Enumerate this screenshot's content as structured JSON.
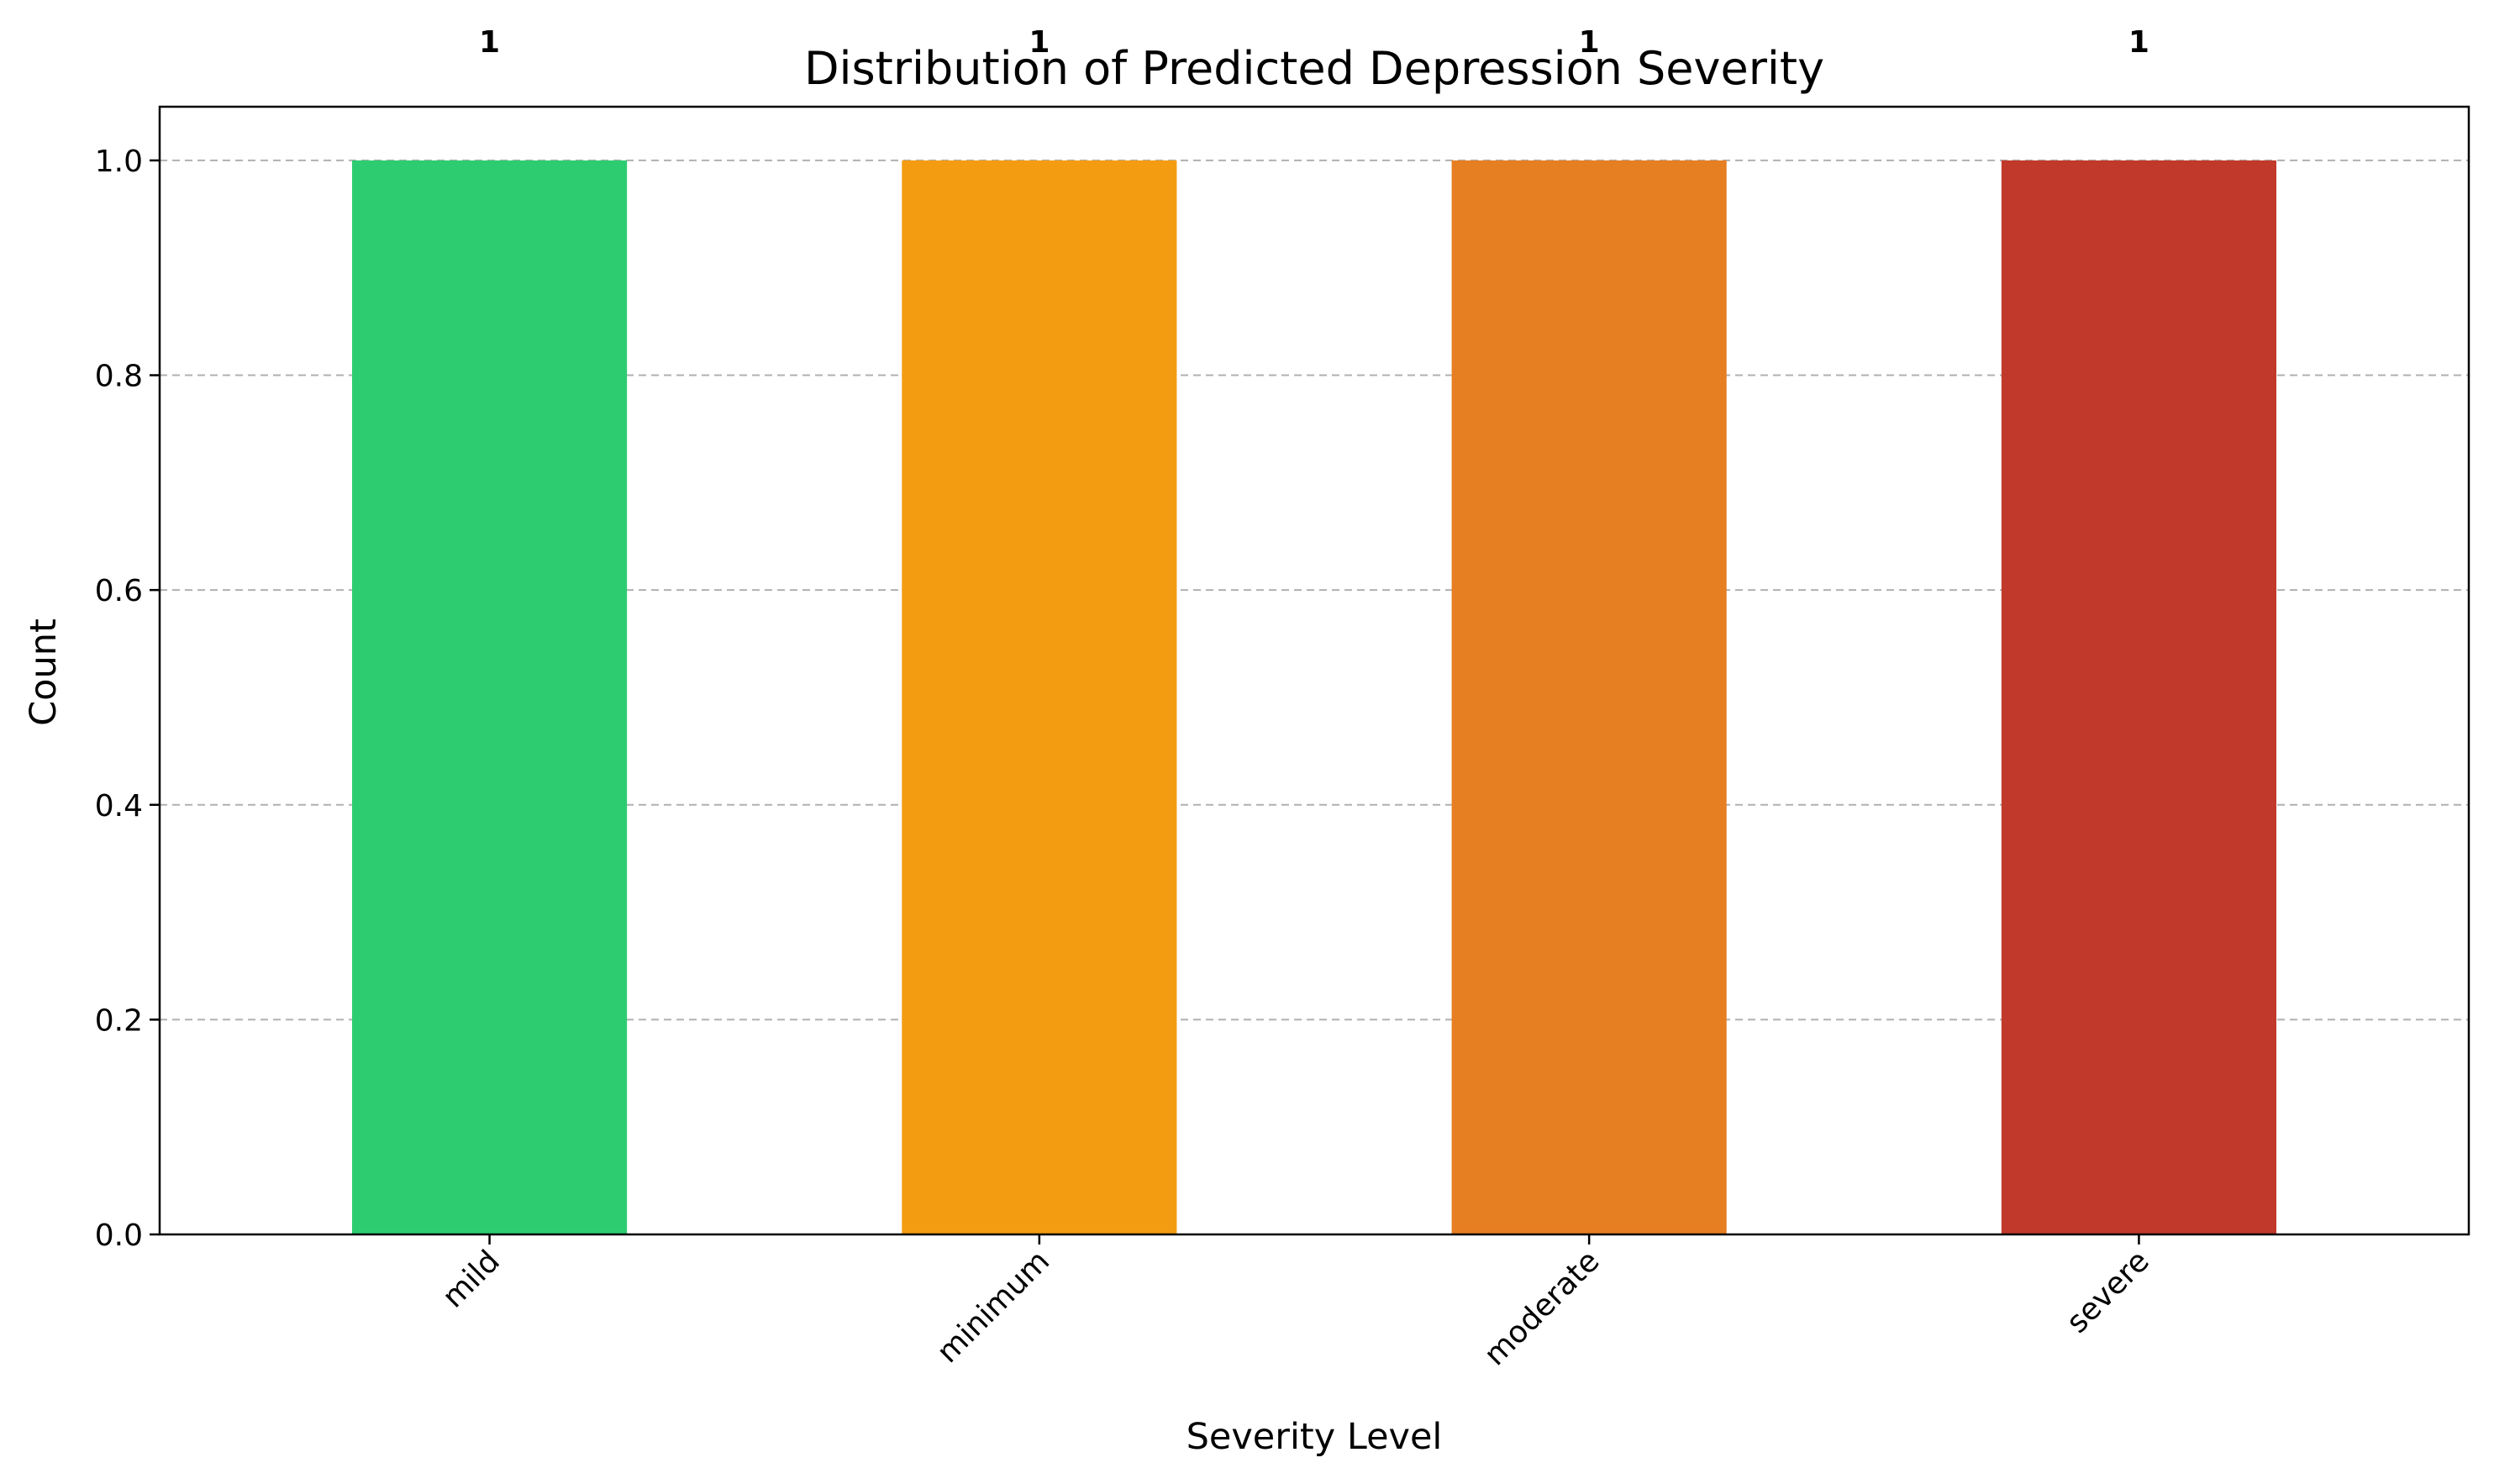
{
  "chart_data": {
    "type": "bar",
    "title": "Distribution of Predicted Depression Severity",
    "xlabel": "Severity Level",
    "ylabel": "Count",
    "categories": [
      "mild",
      "minimum",
      "moderate",
      "severe"
    ],
    "values": [
      1,
      1,
      1,
      1
    ],
    "data_labels": [
      "1",
      "1",
      "1",
      "1"
    ],
    "colors": [
      "#2ecc71",
      "#f39c12",
      "#e67e22",
      "#c0392b"
    ],
    "ylim": [
      0,
      1.05
    ],
    "yticks": [
      0.0,
      0.2,
      0.4,
      0.6,
      0.8,
      1.0
    ],
    "ytick_labels": [
      "0.0",
      "0.2",
      "0.4",
      "0.6",
      "0.8",
      "1.0"
    ],
    "grid": "y-dashed",
    "legend": "none"
  }
}
